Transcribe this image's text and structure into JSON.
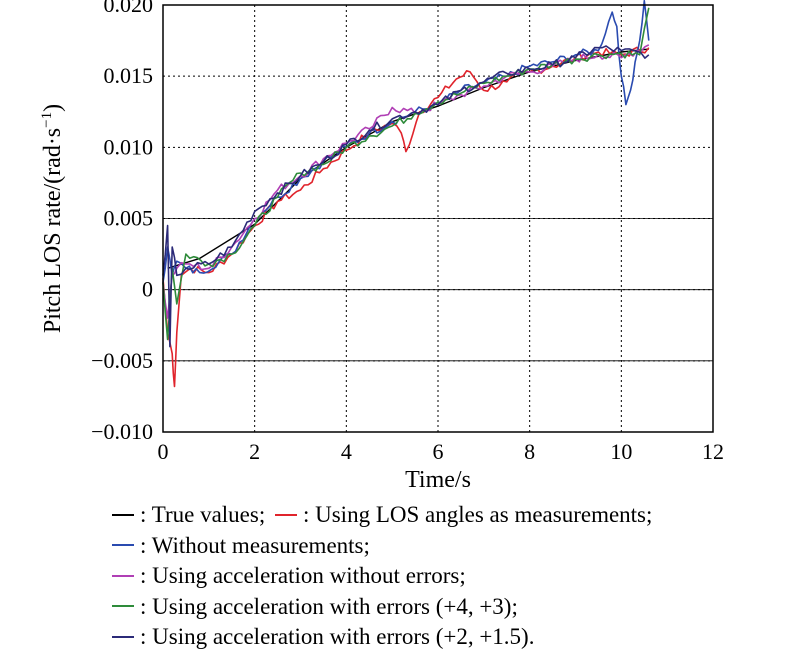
{
  "chart_data": {
    "type": "line",
    "ylabel": "Pitch LOS rate/(rad·s",
    "ylabel_sup": "−1",
    "ylabel_close": ")",
    "xlabel": "Time/s",
    "xlim": [
      0,
      12
    ],
    "ylim": [
      -0.01,
      0.02
    ],
    "xticks": [
      0,
      2,
      4,
      6,
      8,
      10,
      12
    ],
    "xtick_labels": [
      "0",
      "2",
      "4",
      "6",
      "8",
      "10",
      "12"
    ],
    "yticks": [
      0.02,
      0.015,
      0.01,
      0.005,
      0,
      -0.005,
      -0.01
    ],
    "ytick_labels": [
      "0.020",
      "0.015",
      "0.010",
      "0.005",
      "0",
      "−0.005",
      "−0.010"
    ],
    "grid": true,
    "legend_position": "below",
    "series": [
      {
        "name": "True values",
        "color": "#000000",
        "x": [
          0.1,
          0.8,
          2.0,
          3.0,
          4.0,
          5.0,
          6.0,
          7.0,
          8.0,
          9.0,
          10.0,
          10.6
        ],
        "y": [
          0.0015,
          0.0022,
          0.0046,
          0.0078,
          0.01,
          0.0118,
          0.0129,
          0.0142,
          0.0153,
          0.0161,
          0.0167,
          0.0169
        ]
      },
      {
        "name": "Using LOS angles as measurements",
        "color": "#e0242c",
        "x": [
          0.0,
          0.1,
          0.2,
          0.25,
          0.3,
          0.4,
          0.6,
          1.0,
          1.5,
          2.0,
          2.5,
          3.0,
          3.5,
          4.0,
          4.5,
          5.0,
          5.2,
          5.3,
          5.6,
          6.0,
          6.4,
          6.7,
          7.0,
          7.5,
          8.0,
          8.5,
          9.0,
          9.5,
          10.0,
          10.6
        ],
        "y": [
          0.0008,
          -0.003,
          -0.0045,
          -0.0068,
          -0.003,
          0.001,
          0.0015,
          0.0012,
          0.0025,
          0.0045,
          0.0062,
          0.007,
          0.0085,
          0.0098,
          0.011,
          0.0117,
          0.011,
          0.0097,
          0.0125,
          0.0135,
          0.0148,
          0.0153,
          0.014,
          0.0146,
          0.0153,
          0.0157,
          0.0163,
          0.0167,
          0.0165,
          0.017
        ]
      },
      {
        "name": "Without measurements",
        "color": "#2a4bb0",
        "x": [
          0.0,
          0.1,
          0.2,
          0.3,
          0.5,
          0.8,
          1.5,
          2.0,
          2.5,
          3.0,
          3.5,
          4.0,
          4.5,
          5.0,
          5.5,
          6.0,
          6.5,
          7.0,
          7.5,
          8.0,
          8.5,
          9.0,
          9.5,
          9.8,
          9.9,
          10.0,
          10.1,
          10.2,
          10.3,
          10.4,
          10.5,
          10.6
        ],
        "y": [
          0.0005,
          0.003,
          0.001,
          0.002,
          0.0015,
          0.0012,
          0.0025,
          0.005,
          0.0065,
          0.0078,
          0.009,
          0.01,
          0.011,
          0.0118,
          0.0125,
          0.013,
          0.014,
          0.0145,
          0.015,
          0.0157,
          0.016,
          0.0165,
          0.0168,
          0.0195,
          0.0185,
          0.015,
          0.013,
          0.014,
          0.016,
          0.0175,
          0.0203,
          0.0175
        ]
      },
      {
        "name": "Using acceleration without errors",
        "color": "#b03fb5",
        "x": [
          0.0,
          0.1,
          0.2,
          0.3,
          0.5,
          1.0,
          1.5,
          2.0,
          2.5,
          3.0,
          3.5,
          4.0,
          4.5,
          5.0,
          5.5,
          6.0,
          6.5,
          7.0,
          7.5,
          8.0,
          8.5,
          9.0,
          9.5,
          10.0,
          10.6
        ],
        "y": [
          0.0005,
          -0.002,
          0.001,
          0.0015,
          0.0018,
          0.0015,
          0.003,
          0.005,
          0.007,
          0.008,
          0.0092,
          0.0103,
          0.0113,
          0.0128,
          0.0124,
          0.013,
          0.0137,
          0.0143,
          0.015,
          0.0153,
          0.0157,
          0.0162,
          0.0165,
          0.0163,
          0.0172
        ]
      },
      {
        "name": "Using acceleration with errors (+4, +3)",
        "color": "#2e8b3a",
        "x": [
          0.0,
          0.1,
          0.2,
          0.3,
          0.5,
          1.0,
          1.5,
          2.0,
          2.5,
          3.0,
          3.5,
          4.0,
          4.5,
          5.0,
          5.5,
          6.0,
          6.5,
          7.0,
          7.5,
          8.0,
          8.5,
          9.0,
          9.5,
          10.0,
          10.4,
          10.6
        ],
        "y": [
          0.0005,
          -0.0035,
          0.0015,
          -0.001,
          0.0025,
          0.0018,
          0.0025,
          0.0045,
          0.0065,
          0.0082,
          0.0088,
          0.01,
          0.0108,
          0.0115,
          0.0124,
          0.0132,
          0.0138,
          0.0145,
          0.015,
          0.0155,
          0.0158,
          0.0162,
          0.0165,
          0.0166,
          0.0165,
          0.0198
        ]
      },
      {
        "name": "Using acceleration with errors (+2, +1.5)",
        "color": "#2b2a78",
        "x": [
          0.0,
          0.1,
          0.15,
          0.2,
          0.3,
          0.5,
          1.0,
          1.5,
          2.0,
          2.5,
          3.0,
          3.5,
          4.0,
          4.5,
          5.0,
          5.5,
          6.0,
          6.5,
          7.0,
          7.5,
          8.0,
          8.5,
          9.0,
          9.5,
          10.0,
          10.6
        ],
        "y": [
          0.001,
          0.0045,
          -0.004,
          0.003,
          0.001,
          0.0015,
          0.0018,
          0.003,
          0.0055,
          0.0068,
          0.008,
          0.009,
          0.0102,
          0.0112,
          0.012,
          0.0125,
          0.013,
          0.014,
          0.0146,
          0.0152,
          0.0155,
          0.0158,
          0.0163,
          0.017,
          0.0168,
          0.0165
        ]
      }
    ]
  },
  "legend": [
    {
      "color": "#000000",
      "text": ": True values;"
    },
    {
      "color": "#e0242c",
      "text": ": Using LOS angles as measurements;"
    },
    {
      "color": "#2a4bb0",
      "text": ": Without measurements;"
    },
    {
      "color": "#b03fb5",
      "text": ": Using acceleration without errors;"
    },
    {
      "color": "#2e8b3a",
      "text": ": Using acceleration with errors (+4, +3);"
    },
    {
      "color": "#2b2a78",
      "text": ": Using acceleration with errors (+2, +1.5)."
    }
  ]
}
